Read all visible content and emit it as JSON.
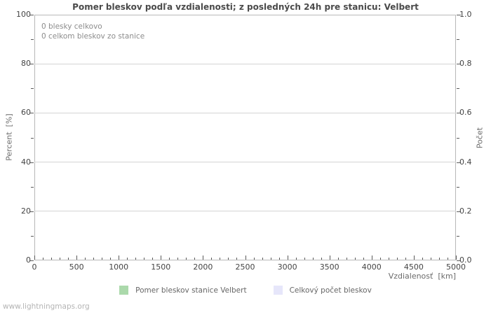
{
  "chart_data": {
    "type": "line",
    "title": "Pomer bleskov podľa vzdialenosti; z posledných 24h pre stanicu: Velbert",
    "annotations": [
      "0 blesky celkovo",
      "0 celkom bleskov zo stanice"
    ],
    "xlabel": "Vzdialenosť  [km]",
    "ylabel_left": "Percent  [%]",
    "ylabel_right": "Počet",
    "xlim": [
      0,
      5000
    ],
    "x_ticks": [
      0,
      500,
      1000,
      1500,
      2000,
      2500,
      3000,
      3500,
      4000,
      4500,
      5000
    ],
    "x_minor_tick_step": 100,
    "y_left_lim": [
      0,
      100
    ],
    "y_left_ticks": [
      0,
      20,
      40,
      60,
      80,
      100
    ],
    "y_minor_ticks": [
      10,
      30,
      50,
      70,
      90
    ],
    "y_right_lim": [
      0.0,
      1.0
    ],
    "y_right_tick_labels": [
      "0.0",
      "0.2",
      "0.4",
      "0.6",
      "0.8",
      "1.0"
    ],
    "grid": "horizontal-major-only",
    "legend_position": "bottom-center",
    "series": [
      {
        "name": "Pomer bleskov stanice Velbert",
        "color": "#abd9ab",
        "points": []
      },
      {
        "name": "Celkový počet bleskov",
        "color": "#e6e6fa",
        "points": []
      }
    ]
  },
  "footer": {
    "watermark": "www.lightningmaps.org"
  }
}
